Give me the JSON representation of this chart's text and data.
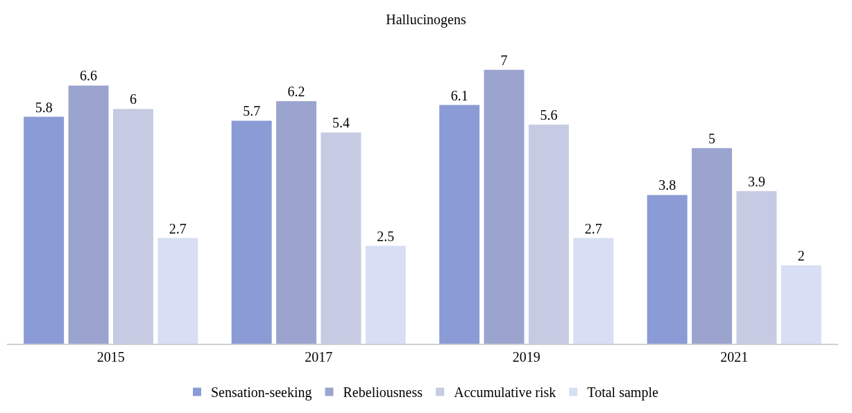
{
  "chart_data": {
    "type": "bar",
    "title": "Hallucinogens",
    "categories": [
      "2015",
      "2017",
      "2019",
      "2021"
    ],
    "series": [
      {
        "name": "Sensation-seeking",
        "color": "#8a9bd5",
        "values": [
          5.8,
          5.7,
          6.1,
          3.8
        ]
      },
      {
        "name": "Rebeliousness",
        "color": "#9ba4cf",
        "values": [
          6.6,
          6.2,
          7,
          5
        ]
      },
      {
        "name": "Accumulative risk",
        "color": "#c6cbe3",
        "values": [
          6,
          5.4,
          5.6,
          3.9
        ]
      },
      {
        "name": "Total sample",
        "color": "#d8def4",
        "values": [
          2.7,
          2.5,
          2.7,
          2
        ]
      }
    ],
    "data_labels": true,
    "grid": false,
    "legend": "bottom"
  }
}
